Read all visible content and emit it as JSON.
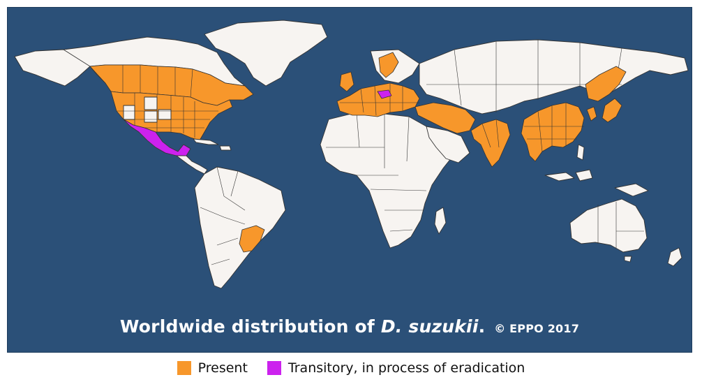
{
  "caption": {
    "prefix": "Worldwide distribution of ",
    "species": "D. suzukii",
    "suffix": ".",
    "copyright": "© EPPO 2017"
  },
  "legend": [
    {
      "label": "Present",
      "color": "#f7972b"
    },
    {
      "label": "Transitory, in process of eradication",
      "color": "#cc22ee"
    }
  ],
  "colors": {
    "ocean": "#2b5078",
    "land_absent": "#f7f4f1",
    "present": "#f7972b",
    "transitory": "#cc22ee"
  }
}
